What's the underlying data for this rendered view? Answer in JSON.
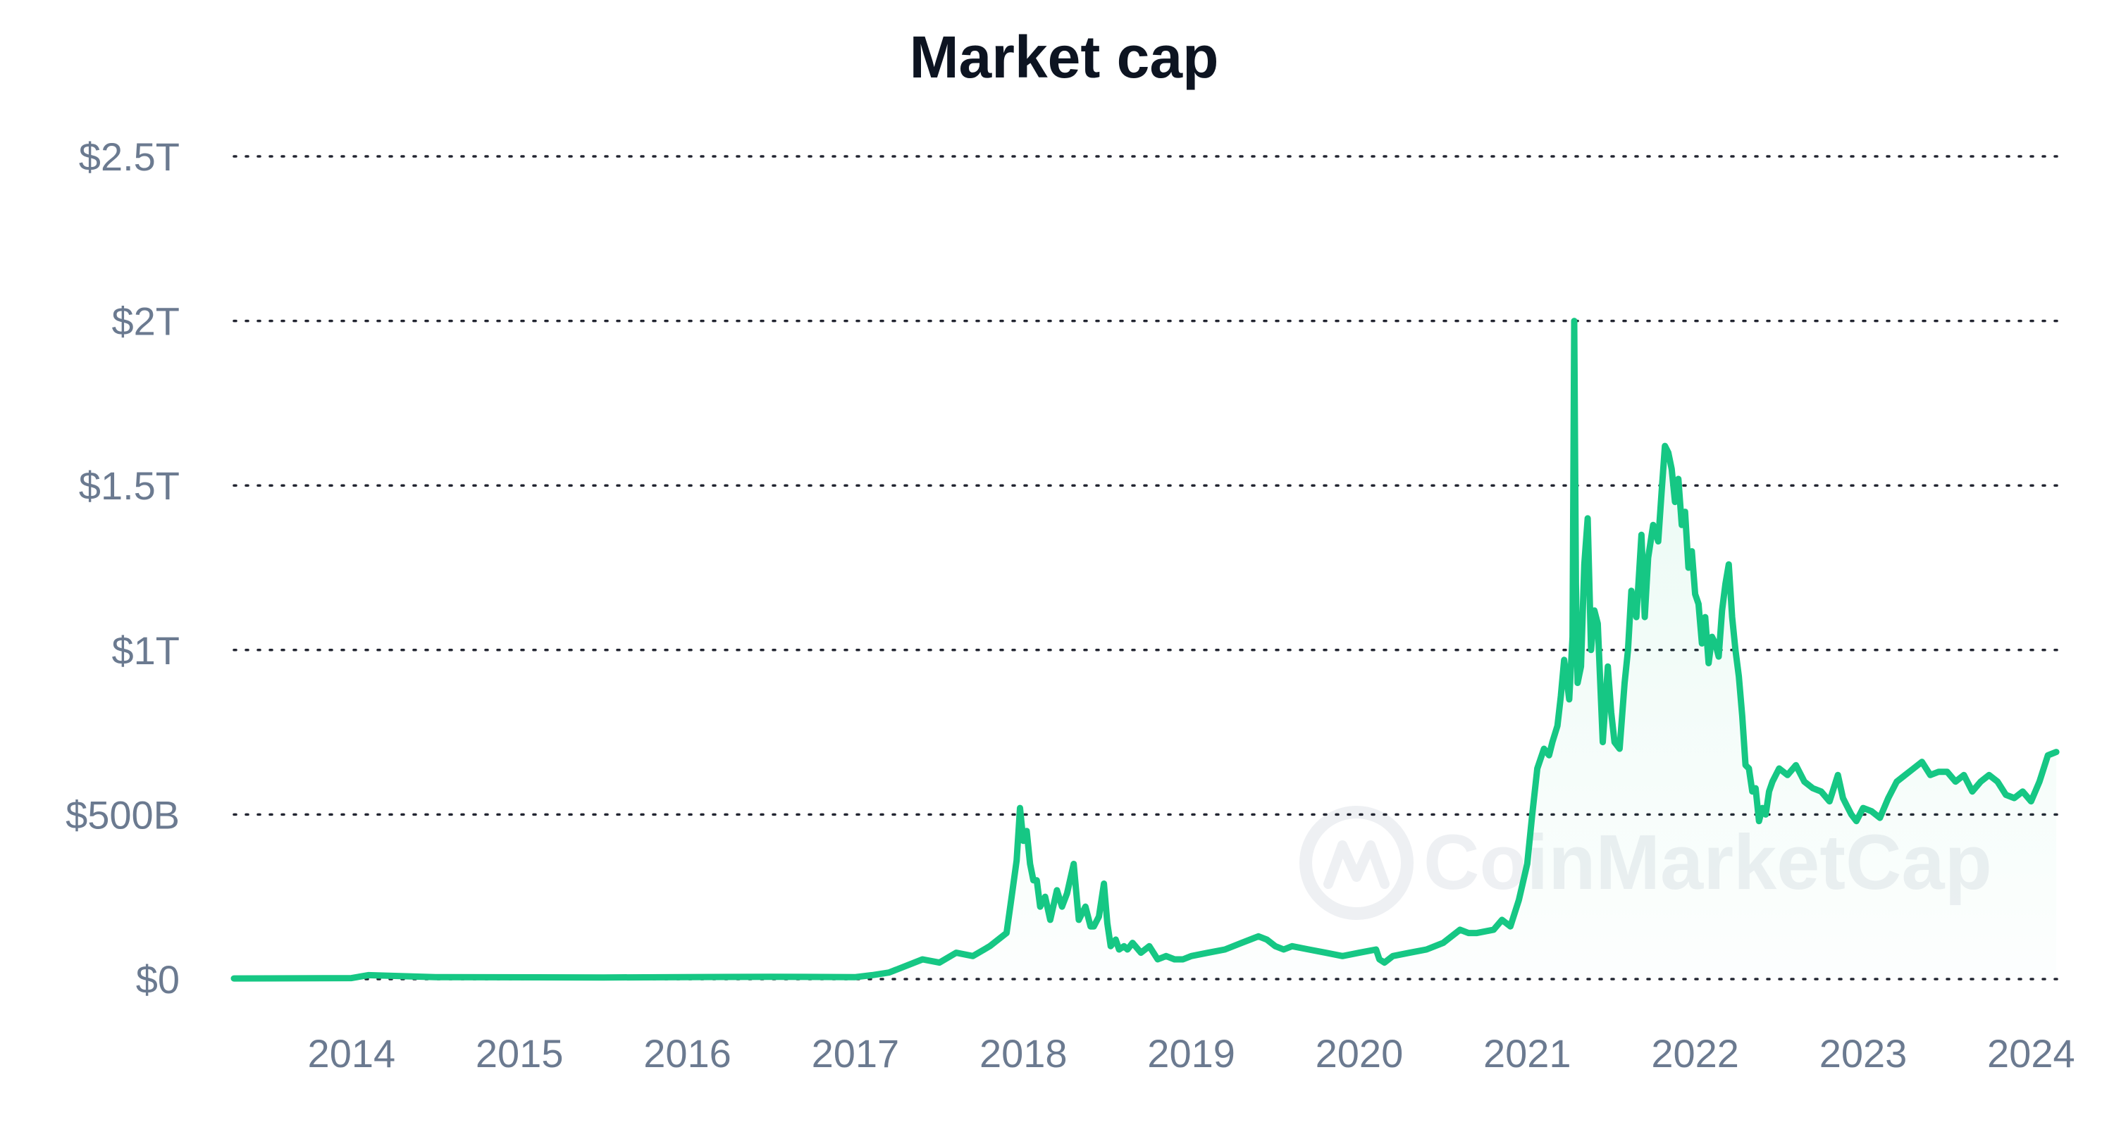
{
  "chart_data": {
    "type": "area",
    "title": "Market cap",
    "xlabel": "",
    "ylabel": "",
    "grid": true,
    "legend": "none",
    "watermark": "CoinMarketCap",
    "colors": {
      "line": "#16c784",
      "fill_top": "#16c784",
      "title": "#0d1421",
      "ticks": "#6b7a90",
      "grid": "#222531",
      "watermark": "#eef0f3"
    },
    "xlim": [
      2013.3,
      2024.2
    ],
    "ylim": [
      0,
      2.5
    ],
    "y_unit": "trillion USD",
    "y_ticks": [
      {
        "value": 0,
        "label": "$0"
      },
      {
        "value": 0.5,
        "label": "$500B"
      },
      {
        "value": 1,
        "label": "$1T"
      },
      {
        "value": 1.5,
        "label": "$1.5T"
      },
      {
        "value": 2,
        "label": "$2T"
      },
      {
        "value": 2.5,
        "label": "$2.5T"
      }
    ],
    "x_ticks": [
      {
        "value": 2014,
        "label": "2014"
      },
      {
        "value": 2015,
        "label": "2015"
      },
      {
        "value": 2016,
        "label": "2016"
      },
      {
        "value": 2017,
        "label": "2017"
      },
      {
        "value": 2018,
        "label": "2018"
      },
      {
        "value": 2019,
        "label": "2019"
      },
      {
        "value": 2020,
        "label": "2020"
      },
      {
        "value": 2021,
        "label": "2021"
      },
      {
        "value": 2022,
        "label": "2022"
      },
      {
        "value": 2023,
        "label": "2023"
      },
      {
        "value": 2024,
        "label": "2024"
      }
    ],
    "series": [
      {
        "name": "Market cap",
        "x": [
          2013.3,
          2014.0,
          2014.1,
          2014.5,
          2015.5,
          2016.5,
          2017.0,
          2017.1,
          2017.2,
          2017.4,
          2017.5,
          2017.6,
          2017.7,
          2017.8,
          2017.9,
          2017.93,
          2017.96,
          2017.98,
          2018.0,
          2018.02,
          2018.04,
          2018.06,
          2018.08,
          2018.1,
          2018.13,
          2018.16,
          2018.2,
          2018.23,
          2018.26,
          2018.3,
          2018.33,
          2018.37,
          2018.4,
          2018.42,
          2018.45,
          2018.48,
          2018.5,
          2018.52,
          2018.55,
          2018.57,
          2018.6,
          2018.62,
          2018.65,
          2018.7,
          2018.75,
          2018.8,
          2018.85,
          2018.9,
          2018.95,
          2019.0,
          2019.1,
          2019.2,
          2019.3,
          2019.4,
          2019.45,
          2019.5,
          2019.55,
          2019.6,
          2019.7,
          2019.8,
          2019.9,
          2020.0,
          2020.1,
          2020.12,
          2020.15,
          2020.2,
          2020.3,
          2020.4,
          2020.5,
          2020.6,
          2020.65,
          2020.7,
          2020.8,
          2020.85,
          2020.9,
          2020.95,
          2021.0,
          2021.03,
          2021.06,
          2021.1,
          2021.13,
          2021.15,
          2021.18,
          2021.2,
          2021.22,
          2021.25,
          2021.27,
          2021.28,
          2021.29,
          2021.3,
          2021.32,
          2021.34,
          2021.36,
          2021.38,
          2021.4,
          2021.42,
          2021.45,
          2021.48,
          2021.5,
          2021.52,
          2021.55,
          2021.58,
          2021.6,
          2021.62,
          2021.65,
          2021.68,
          2021.7,
          2021.72,
          2021.75,
          2021.78,
          2021.8,
          2021.82,
          2021.84,
          2021.86,
          2021.88,
          2021.9,
          2021.92,
          2021.94,
          2021.96,
          2021.98,
          2022.0,
          2022.02,
          2022.04,
          2022.06,
          2022.08,
          2022.1,
          2022.12,
          2022.14,
          2022.16,
          2022.18,
          2022.2,
          2022.22,
          2022.24,
          2022.26,
          2022.28,
          2022.3,
          2022.32,
          2022.34,
          2022.36,
          2022.38,
          2022.4,
          2022.42,
          2022.44,
          2022.46,
          2022.5,
          2022.55,
          2022.6,
          2022.65,
          2022.7,
          2022.75,
          2022.8,
          2022.85,
          2022.88,
          2022.9,
          2022.93,
          2022.96,
          2023.0,
          2023.05,
          2023.1,
          2023.15,
          2023.2,
          2023.25,
          2023.3,
          2023.35,
          2023.4,
          2023.45,
          2023.5,
          2023.55,
          2023.6,
          2023.65,
          2023.7,
          2023.75,
          2023.8,
          2023.85,
          2023.9,
          2023.95,
          2024.0,
          2024.05,
          2024.1,
          2024.15
        ],
        "values": [
          0.002,
          0.003,
          0.012,
          0.006,
          0.005,
          0.007,
          0.006,
          0.012,
          0.02,
          0.06,
          0.05,
          0.08,
          0.07,
          0.1,
          0.14,
          0.25,
          0.36,
          0.52,
          0.42,
          0.45,
          0.35,
          0.3,
          0.3,
          0.22,
          0.25,
          0.18,
          0.27,
          0.22,
          0.26,
          0.35,
          0.18,
          0.22,
          0.16,
          0.16,
          0.19,
          0.29,
          0.17,
          0.1,
          0.12,
          0.09,
          0.1,
          0.09,
          0.11,
          0.08,
          0.1,
          0.06,
          0.07,
          0.06,
          0.06,
          0.07,
          0.08,
          0.09,
          0.11,
          0.13,
          0.12,
          0.1,
          0.09,
          0.1,
          0.09,
          0.08,
          0.07,
          0.08,
          0.09,
          0.06,
          0.05,
          0.07,
          0.08,
          0.09,
          0.11,
          0.15,
          0.14,
          0.14,
          0.15,
          0.18,
          0.16,
          0.24,
          0.35,
          0.5,
          0.64,
          0.7,
          0.68,
          0.72,
          0.77,
          0.86,
          0.97,
          0.85,
          1.04,
          2.0,
          1.2,
          0.9,
          0.95,
          1.26,
          1.4,
          1.0,
          1.12,
          1.08,
          0.72,
          0.95,
          0.81,
          0.72,
          0.7,
          0.9,
          1.0,
          1.18,
          1.1,
          1.35,
          1.1,
          1.28,
          1.38,
          1.33,
          1.48,
          1.62,
          1.6,
          1.55,
          1.45,
          1.52,
          1.38,
          1.42,
          1.25,
          1.3,
          1.17,
          1.14,
          1.02,
          1.1,
          0.96,
          1.04,
          1.02,
          0.98,
          1.12,
          1.2,
          1.26,
          1.1,
          1.0,
          0.92,
          0.8,
          0.65,
          0.64,
          0.57,
          0.58,
          0.48,
          0.52,
          0.5,
          0.57,
          0.6,
          0.64,
          0.62,
          0.65,
          0.6,
          0.58,
          0.57,
          0.54,
          0.62,
          0.55,
          0.53,
          0.5,
          0.48,
          0.52,
          0.51,
          0.49,
          0.55,
          0.6,
          0.62,
          0.64,
          0.66,
          0.62,
          0.63,
          0.63,
          0.6,
          0.62,
          0.57,
          0.6,
          0.62,
          0.6,
          0.56,
          0.55,
          0.57,
          0.54,
          0.6,
          0.68,
          0.69
        ]
      }
    ]
  }
}
